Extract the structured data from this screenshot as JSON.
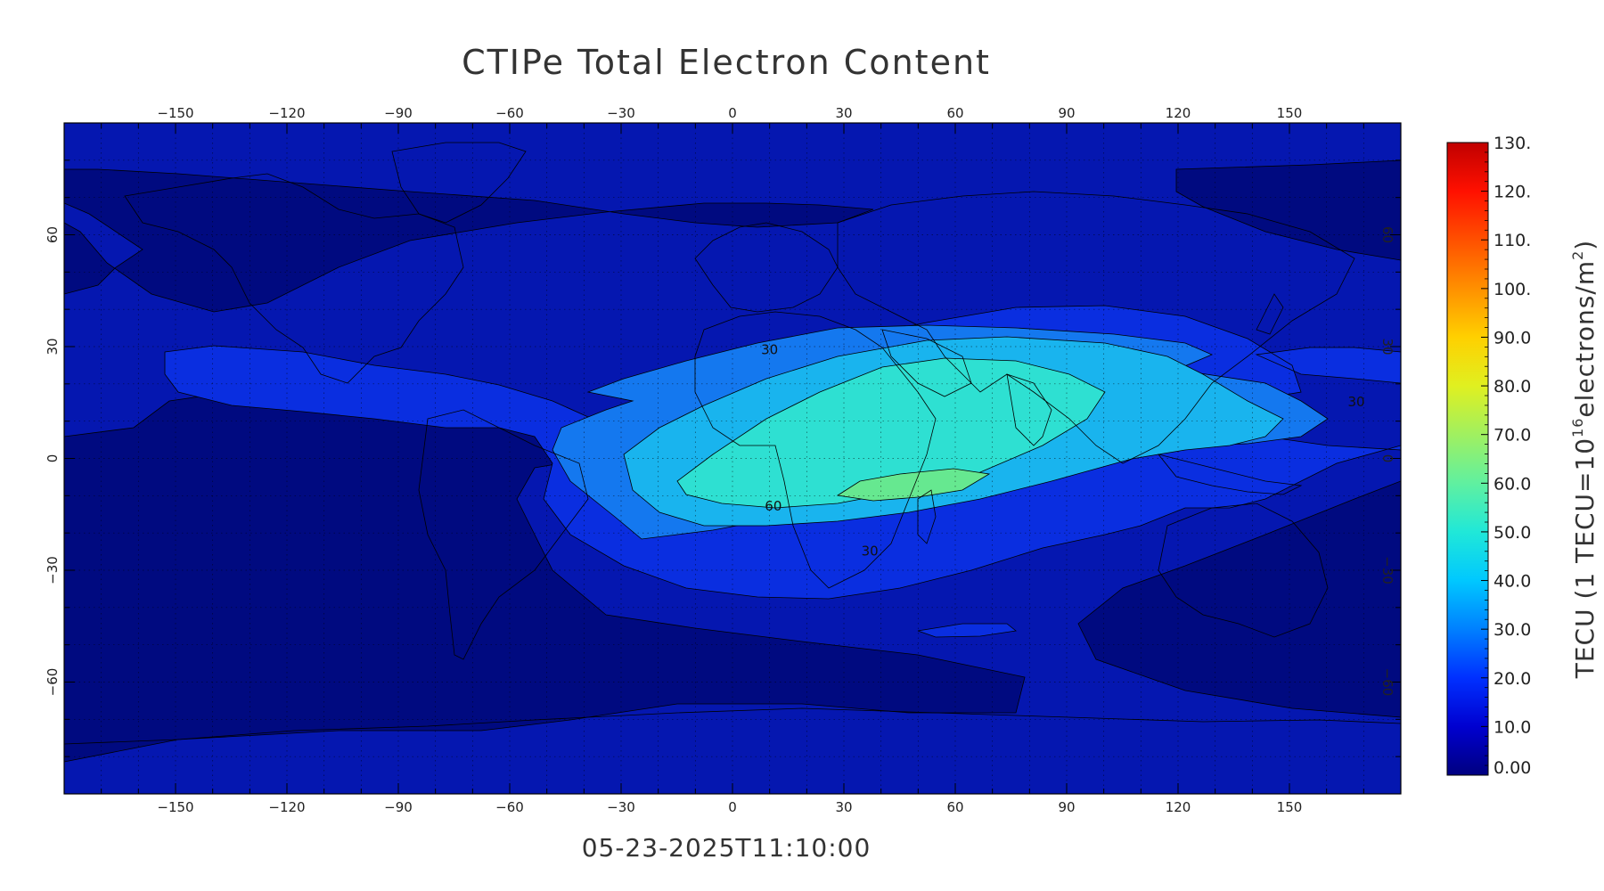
{
  "title": "CTIPe Total Electron Content",
  "timestamp": "05-23-2025T11:10:00",
  "map": {
    "projection": "cylindrical",
    "lon_ticks": [
      -150,
      -120,
      -90,
      -60,
      -30,
      0,
      30,
      60,
      90,
      120,
      150
    ],
    "lat_ticks": [
      60,
      30,
      0,
      -30,
      -60
    ],
    "lon_range": [
      -180,
      180
    ],
    "lat_range": [
      -90,
      90
    ],
    "grid": "dotted",
    "contour_labels": [
      {
        "text": "30",
        "lon": 10,
        "lat": 28
      },
      {
        "text": "30",
        "lon": 168,
        "lat": 14
      },
      {
        "text": "60",
        "lon": 11,
        "lat": -14
      },
      {
        "text": "30",
        "lon": 37,
        "lat": -26
      }
    ],
    "tec_features": [
      {
        "level": 10,
        "lon": 150,
        "lat": 40
      },
      {
        "level": 20,
        "lon": 60,
        "lat": 10
      },
      {
        "level": 30,
        "lon": 55,
        "lat": 5
      },
      {
        "level": 40,
        "lon": 50,
        "lat": 5
      },
      {
        "level": 50,
        "lon": 50,
        "lat": 2
      },
      {
        "level": 60,
        "lon": 50,
        "lat": -6
      }
    ]
  },
  "colorbar": {
    "title_main": "TECU (1 TECU=10",
    "title_sup": "16",
    "title_mid": "electrons/m",
    "title_sup2": "2",
    "title_end": ")",
    "min": 0,
    "max": 130,
    "tick_labels": [
      "0.00",
      "10.0",
      "20.0",
      "30.0",
      "40.0",
      "50.0",
      "60.0",
      "70.0",
      "80.0",
      "90.0",
      "100.",
      "110.",
      "120.",
      "130."
    ],
    "colors": [
      "#000080",
      "#0000d0",
      "#0030ff",
      "#0080ff",
      "#00c8ff",
      "#20e8d8",
      "#60f0a0",
      "#a0f060",
      "#e0f020",
      "#ffd000",
      "#ff9000",
      "#ff5000",
      "#ff1000",
      "#c00000"
    ]
  },
  "fill_colors": {
    "lt10": "#000a80",
    "l10": "#0517b0",
    "l20": "#0a2ee0",
    "l30": "#1478ef",
    "l40": "#19b4ee",
    "l50": "#2ee0d2",
    "l60": "#66e890"
  }
}
